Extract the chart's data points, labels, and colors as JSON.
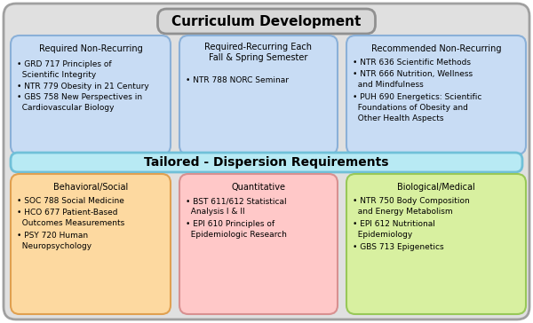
{
  "title": "Curriculum Development",
  "title_bg": "#d8d8d8",
  "title_border": "#909090",
  "outer_bg": "#e0e0e0",
  "outer_border": "#a0a0a0",
  "box1_title": "Required Non-Recurring",
  "box1_bg": "#c8dcf4",
  "box1_border": "#8ab0d8",
  "box1_items": [
    "• GRD 717 Principles of\n  Scientific Integrity",
    "• NTR 779 Obesity in 21 Century",
    "• GBS 758 New Perspectives in\n  Cardiovascular Biology"
  ],
  "box2_title": "Required-Recurring Each\nFall & Spring Semester",
  "box2_bg": "#c8dcf4",
  "box2_border": "#8ab0d8",
  "box2_items": [
    "• NTR 788 NORC Seminar"
  ],
  "box3_title": "Recommended Non-Recurring",
  "box3_bg": "#c8dcf4",
  "box3_border": "#8ab0d8",
  "box3_items": [
    "• NTR 636 Scientific Methods",
    "• NTR 666 Nutrition, Wellness\n  and Mindfulness",
    "• PUH 690 Energetics: Scientific\n  Foundations of Obesity and\n  Other Health Aspects"
  ],
  "banner_text": "Tailored - Dispersion Requirements",
  "banner_bg": "#b8eaf4",
  "banner_border": "#70c0d8",
  "box4_title": "Behavioral/Social",
  "box4_bg": "#fdd9a0",
  "box4_border": "#e0a050",
  "box4_items": [
    "• SOC 788 Social Medicine",
    "• HCO 677 Patient-Based\n  Outcomes Measurements",
    "• PSY 720 Human\n  Neuropsychology"
  ],
  "box5_title": "Quantitative",
  "box5_bg": "#ffc8c8",
  "box5_border": "#d89090",
  "box5_items": [
    "• BST 611/612 Statistical\n  Analysis I & II",
    "• EPI 610 Principles of\n  Epidemiologic Research"
  ],
  "box6_title": "Biological/Medical",
  "box6_bg": "#d8f0a0",
  "box6_border": "#98c858",
  "box6_items": [
    "• NTR 750 Body Composition\n  and Energy Metabolism",
    "• EPI 612 Nutritional\n  Epidemiology",
    "• GBS 713 Epigenetics"
  ]
}
